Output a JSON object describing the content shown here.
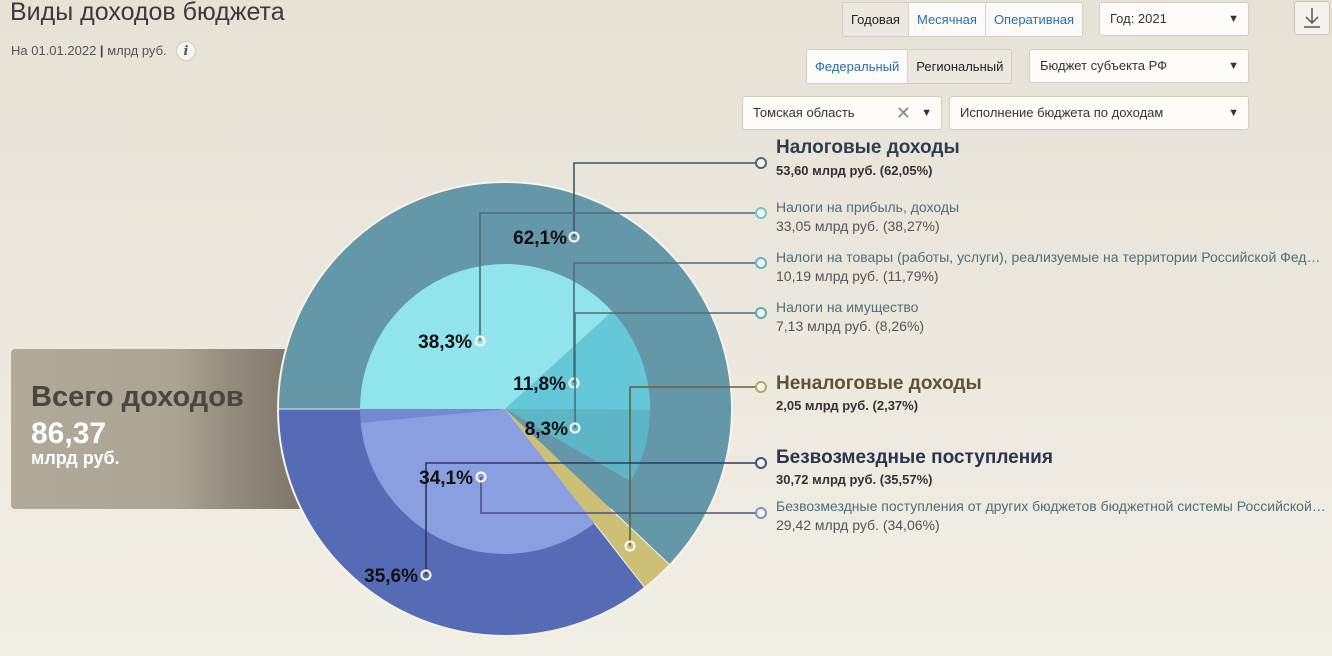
{
  "header": {
    "title": "Виды доходов бюджета",
    "date_text": "На 01.01.2022",
    "sep": "|",
    "unit_text": "млрд руб.",
    "info_label": "i"
  },
  "controls": {
    "period_tabs": [
      "Годовая",
      "Месячная",
      "Оперативная"
    ],
    "period_active": "Годовая",
    "year_select": "Год: 2021",
    "level_tabs": [
      "Федеральный",
      "Региональный"
    ],
    "level_active": "Региональный",
    "budget_select": "Бюджет субъекта РФ",
    "region_select": "Томская область",
    "report_select": "Исполнение бюджета по доходам",
    "arrow_glyph": "▼",
    "clear_glyph": "✕"
  },
  "total": {
    "label": "Всего доходов",
    "value": "86,37",
    "unit": "млрд руб."
  },
  "colors": {
    "tax_outer": "#6497a8",
    "tax_profit": "#91e3ec",
    "tax_goods": "#65c8d9",
    "tax_property": "#5cb6c6",
    "nontax": "#cdbf75",
    "gratuitous_outer": "#566bb6",
    "gratuitous_inner": "#8a9fe0",
    "gratuitous_inner_other": "#7489cf",
    "tax_title": "#2c3e4e",
    "nontax_title": "#5e5434",
    "gratuitous_title": "#2c3350"
  },
  "chart_data": {
    "type": "pie",
    "title": "Виды доходов бюджета",
    "unit": "млрд руб.",
    "total": 86.37,
    "outer": [
      {
        "name": "Налоговые доходы",
        "value": 53.6,
        "percent": 62.05,
        "label": "62,1%"
      },
      {
        "name": "Неналоговые доходы",
        "value": 2.05,
        "percent": 2.37,
        "label": ""
      },
      {
        "name": "Безвозмездные поступления",
        "value": 30.72,
        "percent": 35.57,
        "label": "35,6%"
      }
    ],
    "inner": [
      {
        "name": "Налоги на прибыль, доходы",
        "parent": "Налоговые доходы",
        "value": 33.05,
        "percent": 38.27,
        "label": "38,3%"
      },
      {
        "name": "Налоги на товары (работы, услуги), реализуемые на территории Российской Федерации",
        "parent": "Налоговые доходы",
        "value": 10.19,
        "percent": 11.79,
        "label": "11,8%"
      },
      {
        "name": "Налоги на имущество",
        "parent": "Налоговые доходы",
        "value": 7.13,
        "percent": 8.26,
        "label": "8,3%"
      },
      {
        "name": "Безвозмездные поступления от других бюджетов бюджетной системы Российской Федерации",
        "parent": "Безвозмездные поступления",
        "value": 29.42,
        "percent": 34.06,
        "label": "34,1%"
      }
    ]
  },
  "legend": [
    {
      "kind": "group",
      "title": "Налоговые доходы",
      "value": "53,60 млрд руб. (62,05%)"
    },
    {
      "kind": "item",
      "title": "Налоги на прибыль, доходы",
      "value": "33,05 млрд руб. (38,27%)"
    },
    {
      "kind": "item",
      "title": "Налоги на товары (работы, услуги), реализуемые на территории Российской Федерации",
      "value": "10,19 млрд руб. (11,79%)"
    },
    {
      "kind": "item",
      "title": "Налоги на имущество",
      "value": "7,13 млрд руб. (8,26%)"
    },
    {
      "kind": "group",
      "title": "Неналоговые доходы",
      "value": "2,05 млрд руб. (2,37%)"
    },
    {
      "kind": "group",
      "title": "Безвозмездные поступления",
      "value": "30,72 млрд руб. (35,57%)"
    },
    {
      "kind": "item",
      "title": "Безвозмездные поступления от других бюджетов бюджетной системы Российской Федерации",
      "value": "29,42 млрд руб. (34,06%)"
    }
  ]
}
